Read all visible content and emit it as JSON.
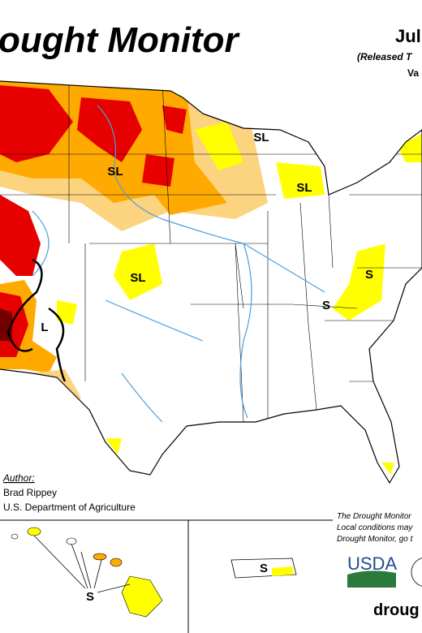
{
  "header": {
    "title": "ought Monitor",
    "date": "Jul",
    "released": "(Released T",
    "valid": "Va"
  },
  "map_labels": [
    "SL",
    "SL",
    "SL",
    "SL",
    "S",
    "S",
    "L"
  ],
  "insets": {
    "hawaii_label": "S",
    "puerto_rico_label": "S"
  },
  "author": {
    "heading": "Author:",
    "name": "Brad Rippey",
    "org": "U.S. Department of Agriculture"
  },
  "note": [
    "The Drought Monitor",
    "Local conditions may",
    "Drought Monitor, go t"
  ],
  "logo": "USDA",
  "footer": "droug"
}
